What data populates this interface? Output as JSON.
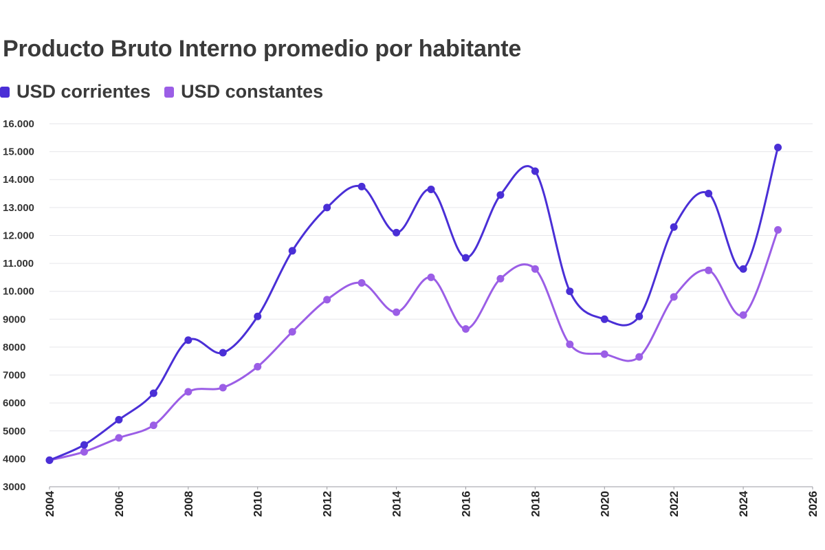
{
  "chart_data": {
    "type": "line",
    "title": "Producto Bruto Interno promedio por habitante",
    "xlabel": "",
    "ylabel": "",
    "xlim": [
      2004,
      2026
    ],
    "ylim": [
      3000,
      16000
    ],
    "grid": true,
    "legend_position": "top-left",
    "x_ticks": [
      2004,
      2006,
      2008,
      2010,
      2012,
      2014,
      2016,
      2018,
      2020,
      2022,
      2024,
      2026
    ],
    "x_tick_labels": [
      "2004",
      "2006",
      "2008",
      "2010",
      "2012",
      "2014",
      "2016",
      "2018",
      "2020",
      "2022",
      "2024",
      "2026"
    ],
    "y_ticks": [
      3000,
      4000,
      5000,
      6000,
      7000,
      8000,
      9000,
      10000,
      11000,
      12000,
      13000,
      14000,
      15000,
      16000
    ],
    "y_tick_labels": [
      "3000",
      "4000",
      "5000",
      "6000",
      "7000",
      "8000",
      "9000",
      "10.000",
      "11.000",
      "12.000",
      "13.000",
      "14.000",
      "15.000",
      "16.000"
    ],
    "x": [
      2004,
      2005,
      2006,
      2007,
      2008,
      2009,
      2010,
      2011,
      2012,
      2013,
      2014,
      2015,
      2016,
      2017,
      2018,
      2019,
      2020,
      2021,
      2022,
      2023,
      2024,
      2025
    ],
    "series": [
      {
        "name": "USD corrientes",
        "color": "#4a2fd6",
        "values": [
          3950,
          4500,
          5400,
          6350,
          8250,
          7800,
          9100,
          11450,
          13000,
          13750,
          12100,
          13650,
          11200,
          13450,
          14300,
          10000,
          9000,
          9100,
          12300,
          13500,
          10800,
          15150
        ]
      },
      {
        "name": "USD constantes",
        "color": "#9b5ee6",
        "values": [
          3950,
          4250,
          4750,
          5200,
          6400,
          6550,
          7300,
          8550,
          9700,
          10300,
          9250,
          10500,
          8650,
          10450,
          10800,
          8100,
          7750,
          7650,
          9800,
          10750,
          9150,
          12200
        ]
      }
    ]
  }
}
